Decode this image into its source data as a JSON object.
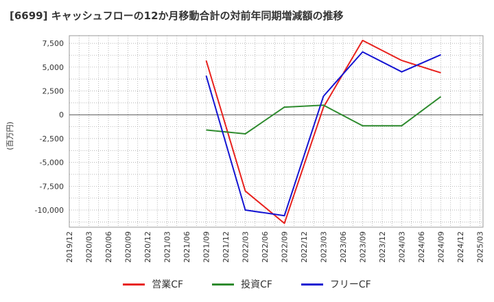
{
  "chart_data": {
    "type": "line",
    "title": "[6699]  キャッシュフローの12か月移動合計の対前年同期増減額の推移",
    "ylabel": "(百万円)",
    "xlabel": "",
    "ylim": [
      -11800,
      8300
    ],
    "yticks": [
      7500,
      5000,
      2500,
      0,
      -2500,
      -5000,
      -7500,
      -10000
    ],
    "ytick_labels": [
      "7,500",
      "5,000",
      "2,500",
      "0",
      "-2,500",
      "-5,000",
      "-7,500",
      "-10,000"
    ],
    "categories": [
      "2019/12",
      "2020/03",
      "2020/06",
      "2020/09",
      "2020/12",
      "2021/03",
      "2021/06",
      "2021/09",
      "2021/12",
      "2022/03",
      "2022/06",
      "2022/09",
      "2022/12",
      "2023/03",
      "2023/06",
      "2023/09",
      "2023/12",
      "2024/03",
      "2024/06",
      "2024/09",
      "2024/12",
      "2025/03"
    ],
    "series": [
      {
        "name": "営業CF",
        "color": "#e8211d",
        "points": [
          [
            7,
            5700
          ],
          [
            9,
            -8000
          ],
          [
            11,
            -11400
          ],
          [
            13,
            800
          ],
          [
            15,
            7800
          ],
          [
            17,
            5700
          ],
          [
            19,
            4400
          ]
        ]
      },
      {
        "name": "投資CF",
        "color": "#2e8b2e",
        "points": [
          [
            7,
            -1600
          ],
          [
            9,
            -2000
          ],
          [
            11,
            800
          ],
          [
            13,
            1000
          ],
          [
            15,
            -1150
          ],
          [
            17,
            -1150
          ],
          [
            19,
            1900
          ]
        ]
      },
      {
        "name": "フリーCF",
        "color": "#1414d2",
        "points": [
          [
            7,
            4100
          ],
          [
            9,
            -10000
          ],
          [
            11,
            -10600
          ],
          [
            13,
            1950
          ],
          [
            15,
            6600
          ],
          [
            17,
            4500
          ],
          [
            19,
            6300
          ]
        ]
      }
    ],
    "legend_position": "bottom",
    "grid": true
  }
}
